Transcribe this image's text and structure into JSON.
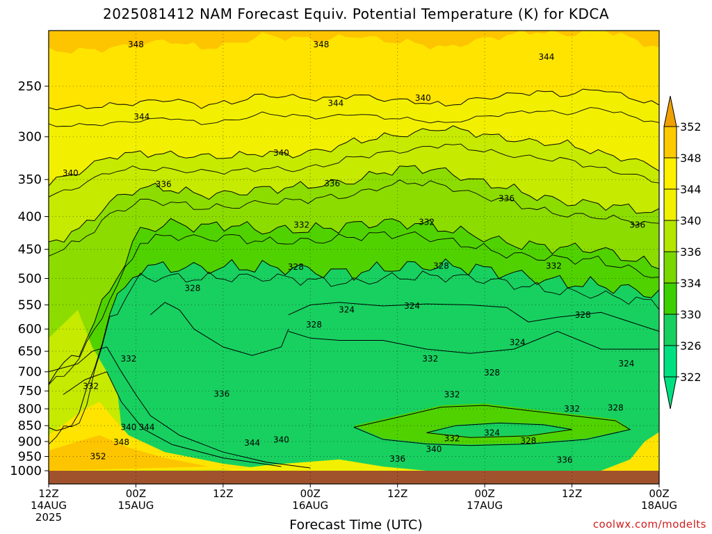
{
  "title": "2025081412 NAM Forecast Equiv. Potential Temperature (K) for KDCA",
  "credit": "coolwx.com/modelts",
  "chart_data": {
    "type": "heatmap",
    "title": "2025081412 NAM Forecast Equiv. Potential Temperature (K) for KDCA",
    "xlabel": "Forecast Time (UTC)",
    "ylabel": "",
    "x_range_hours": [
      0,
      84
    ],
    "y_range_hPa": [
      1000,
      200
    ],
    "y_ticks": [
      250,
      300,
      350,
      400,
      450,
      500,
      550,
      600,
      650,
      700,
      750,
      800,
      850,
      900,
      950,
      1000
    ],
    "x_ticks": [
      {
        "hour": 0,
        "lines": [
          "12Z",
          "14AUG",
          "2025"
        ]
      },
      {
        "hour": 12,
        "lines": [
          "00Z",
          "15AUG"
        ]
      },
      {
        "hour": 24,
        "lines": [
          "12Z"
        ]
      },
      {
        "hour": 36,
        "lines": [
          "00Z",
          "16AUG"
        ]
      },
      {
        "hour": 48,
        "lines": [
          "12Z"
        ]
      },
      {
        "hour": 60,
        "lines": [
          "00Z",
          "17AUG"
        ]
      },
      {
        "hour": 72,
        "lines": [
          "12Z"
        ]
      },
      {
        "hour": 84,
        "lines": [
          "00Z",
          "18AUG"
        ]
      }
    ],
    "grid": true,
    "colorbar": {
      "placement": "right",
      "levels": [
        352,
        348,
        344,
        340,
        336,
        334,
        330,
        326,
        322
      ],
      "colors": [
        "#f0a000",
        "#fcca00",
        "#fff000",
        "#f0f000",
        "#b4e600",
        "#7ad800",
        "#3dd000",
        "#18d060",
        "#00e080"
      ]
    },
    "field_fill_colors": {
      "352": "#f2a600",
      "348": "#fdc400",
      "344": "#ffe400",
      "340": "#f2f000",
      "336": "#c6ea00",
      "332": "#8cdc00",
      "328": "#50d200",
      "324": "#18d060"
    },
    "contours": [
      {
        "level": 344,
        "p": [
          270,
          270,
          268,
          265,
          262,
          268,
          265,
          258,
          260,
          262,
          258,
          262,
          264,
          268,
          262,
          258,
          255,
          258,
          252,
          260,
          268
        ]
      },
      {
        "level": 340,
        "p": [
          355,
          340,
          322,
          318,
          320,
          322,
          322,
          318,
          320,
          315,
          305,
          300,
          296,
          290,
          296,
          302,
          306,
          308,
          318,
          325,
          335
        ]
      },
      {
        "level": 336,
        "p": [
          440,
          420,
          380,
          360,
          362,
          370,
          368,
          362,
          360,
          356,
          352,
          340,
          335,
          340,
          352,
          360,
          372,
          380,
          382,
          388,
          395
        ]
      },
      {
        "level": 332,
        "p": [
          720,
          650,
          520,
          420,
          410,
          415,
          412,
          420,
          420,
          418,
          412,
          408,
          410,
          418,
          428,
          440,
          445,
          448,
          450,
          465,
          480
        ]
      },
      {
        "level": 328,
        "p": [
          880,
          820,
          560,
          480,
          480,
          482,
          480,
          480,
          482,
          488,
          490,
          482,
          478,
          478,
          482,
          490,
          500,
          508,
          512,
          520,
          530
        ]
      }
    ],
    "contour_labels": [
      {
        "text": "348",
        "h": 12.0,
        "p": 215
      },
      {
        "text": "348",
        "h": 37.5,
        "p": 215
      },
      {
        "text": "344",
        "h": 68.5,
        "p": 225
      },
      {
        "text": "344",
        "h": 12.8,
        "p": 279
      },
      {
        "text": "344",
        "h": 39.5,
        "p": 266
      },
      {
        "text": "340",
        "h": 51.5,
        "p": 261
      },
      {
        "text": "340",
        "h": 32.0,
        "p": 318
      },
      {
        "text": "340",
        "h": 3.0,
        "p": 342
      },
      {
        "text": "336",
        "h": 15.8,
        "p": 356
      },
      {
        "text": "336",
        "h": 39.0,
        "p": 355
      },
      {
        "text": "336",
        "h": 63.0,
        "p": 375
      },
      {
        "text": "336",
        "h": 81.0,
        "p": 412
      },
      {
        "text": "332",
        "h": 34.8,
        "p": 412
      },
      {
        "text": "332",
        "h": 52.0,
        "p": 408
      },
      {
        "text": "332",
        "h": 69.5,
        "p": 478
      },
      {
        "text": "328",
        "h": 34.0,
        "p": 480
      },
      {
        "text": "328",
        "h": 54.0,
        "p": 478
      },
      {
        "text": "328",
        "h": 19.8,
        "p": 518
      },
      {
        "text": "324",
        "h": 41.0,
        "p": 560
      },
      {
        "text": "324",
        "h": 50.0,
        "p": 552
      },
      {
        "text": "328",
        "h": 36.5,
        "p": 591
      },
      {
        "text": "324",
        "h": 64.5,
        "p": 630
      },
      {
        "text": "332",
        "h": 52.5,
        "p": 668
      },
      {
        "text": "328",
        "h": 61.0,
        "p": 702
      },
      {
        "text": "324",
        "h": 79.5,
        "p": 680
      },
      {
        "text": "328",
        "h": 73.5,
        "p": 570
      },
      {
        "text": "332",
        "h": 11.0,
        "p": 668
      },
      {
        "text": "332",
        "h": 5.8,
        "p": 737
      },
      {
        "text": "336",
        "h": 23.8,
        "p": 758
      },
      {
        "text": "332",
        "h": 55.5,
        "p": 760
      },
      {
        "text": "332",
        "h": 72.0,
        "p": 800
      },
      {
        "text": "328",
        "h": 78.0,
        "p": 797
      },
      {
        "text": "324",
        "h": 61.0,
        "p": 872
      },
      {
        "text": "328",
        "h": 66.0,
        "p": 898
      },
      {
        "text": "332",
        "h": 55.5,
        "p": 890
      },
      {
        "text": "340",
        "h": 11.0,
        "p": 855
      },
      {
        "text": "344",
        "h": 13.5,
        "p": 855
      },
      {
        "text": "348",
        "h": 10.0,
        "p": 902
      },
      {
        "text": "340",
        "h": 32.0,
        "p": 895
      },
      {
        "text": "344",
        "h": 28.0,
        "p": 905
      },
      {
        "text": "352",
        "h": 6.8,
        "p": 950
      },
      {
        "text": "340",
        "h": 53.0,
        "p": 925
      },
      {
        "text": "336",
        "h": 48.0,
        "p": 958
      },
      {
        "text": "336",
        "h": 71.0,
        "p": 962
      }
    ]
  }
}
